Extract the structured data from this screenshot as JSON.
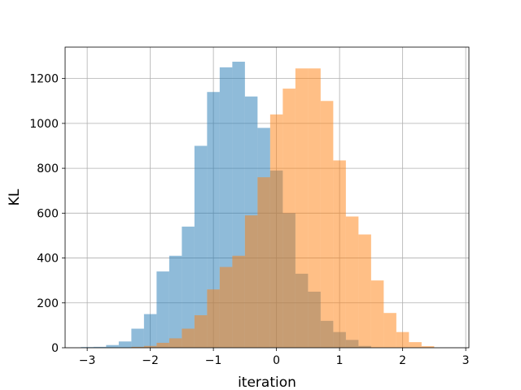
{
  "chart_data": {
    "type": "bar",
    "title": "",
    "xlabel": "iteration",
    "ylabel": "KL",
    "xlim": [
      -3.35,
      3.05
    ],
    "ylim": [
      0,
      1340
    ],
    "grid": true,
    "x_ticks": [
      -3,
      -2,
      -1,
      0,
      1,
      2,
      3
    ],
    "x_tick_labels": [
      "−3",
      "−2",
      "−1",
      "0",
      "1",
      "2",
      "3"
    ],
    "y_ticks": [
      0,
      200,
      400,
      600,
      800,
      1000,
      1200
    ],
    "y_tick_labels": [
      "0",
      "200",
      "400",
      "600",
      "800",
      "1000",
      "1200"
    ],
    "series": [
      {
        "color": "#1f77b4",
        "opacity": 0.5,
        "bin_edges": [
          -3.1,
          -2.9,
          -2.7,
          -2.5,
          -2.3,
          -2.1,
          -1.9,
          -1.7,
          -1.5,
          -1.3,
          -1.1,
          -0.9,
          -0.7,
          -0.5,
          -0.3,
          -0.1,
          0.1,
          0.3,
          0.5,
          0.7,
          0.9,
          1.1,
          1.3,
          1.5
        ],
        "counts": [
          3,
          4,
          12,
          28,
          85,
          150,
          340,
          410,
          540,
          900,
          1140,
          1250,
          1275,
          1120,
          980,
          790,
          600,
          330,
          250,
          120,
          70,
          35,
          8
        ]
      },
      {
        "color": "#ff7f0e",
        "opacity": 0.5,
        "bin_edges": [
          -2.3,
          -2.1,
          -1.9,
          -1.7,
          -1.5,
          -1.3,
          -1.1,
          -0.9,
          -0.7,
          -0.5,
          -0.3,
          -0.1,
          0.1,
          0.3,
          0.5,
          0.7,
          0.9,
          1.1,
          1.3,
          1.5,
          1.7,
          1.9,
          2.1,
          2.3,
          2.5
        ],
        "counts": [
          4,
          8,
          22,
          42,
          85,
          145,
          260,
          360,
          410,
          590,
          760,
          1040,
          1155,
          1245,
          1245,
          1100,
          835,
          585,
          505,
          300,
          155,
          70,
          25,
          7
        ]
      }
    ]
  }
}
